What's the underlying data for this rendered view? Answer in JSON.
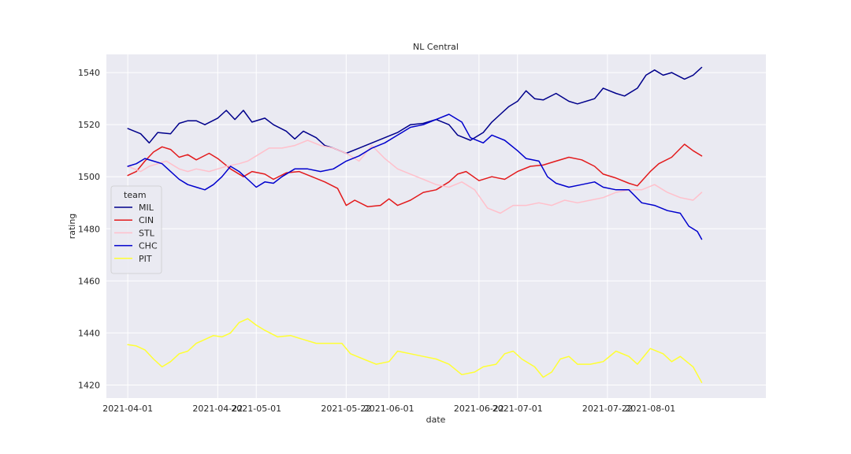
{
  "chart_data": {
    "type": "line",
    "title": "NL Central",
    "xlabel": "date",
    "ylabel": "rating",
    "xlim": [
      "2021-03-27",
      "2021-08-28"
    ],
    "ylim": [
      1415,
      1547
    ],
    "x_ticks": [
      "2021-04-01",
      "2021-04-22",
      "2021-05-01",
      "2021-05-22",
      "2021-06-01",
      "2021-06-22",
      "2021-07-01",
      "2021-07-22",
      "2021-08-01"
    ],
    "y_ticks": [
      1420,
      1440,
      1460,
      1480,
      1500,
      1520,
      1540
    ],
    "grid": true,
    "legend_title": "team",
    "legend_placement": "center-left",
    "series": [
      {
        "name": "MIL",
        "color": "#00008b",
        "points": [
          [
            "2021-04-01",
            1518.5
          ],
          [
            "2021-04-04",
            1516.5
          ],
          [
            "2021-04-06",
            1513
          ],
          [
            "2021-04-08",
            1517
          ],
          [
            "2021-04-11",
            1516.5
          ],
          [
            "2021-04-13",
            1520.5
          ],
          [
            "2021-04-15",
            1521.5
          ],
          [
            "2021-04-17",
            1521.5
          ],
          [
            "2021-04-19",
            1520
          ],
          [
            "2021-04-22",
            1522.5
          ],
          [
            "2021-04-24",
            1525.5
          ],
          [
            "2021-04-26",
            1522
          ],
          [
            "2021-04-28",
            1525.5
          ],
          [
            "2021-04-30",
            1521
          ],
          [
            "2021-05-03",
            1522.5
          ],
          [
            "2021-05-05",
            1520
          ],
          [
            "2021-05-08",
            1517.5
          ],
          [
            "2021-05-10",
            1514.5
          ],
          [
            "2021-05-12",
            1517.5
          ],
          [
            "2021-05-15",
            1515
          ],
          [
            "2021-05-17",
            1512
          ],
          [
            "2021-05-19",
            1511
          ],
          [
            "2021-05-22",
            1509
          ],
          [
            "2021-05-25",
            1511
          ],
          [
            "2021-05-28",
            1513
          ],
          [
            "2021-05-31",
            1515
          ],
          [
            "2021-06-03",
            1517
          ],
          [
            "2021-06-06",
            1520
          ],
          [
            "2021-06-09",
            1520.5
          ],
          [
            "2021-06-12",
            1522
          ],
          [
            "2021-06-15",
            1520
          ],
          [
            "2021-06-17",
            1516
          ],
          [
            "2021-06-20",
            1514
          ],
          [
            "2021-06-23",
            1517
          ],
          [
            "2021-06-25",
            1521
          ],
          [
            "2021-06-27",
            1524
          ],
          [
            "2021-06-29",
            1527
          ],
          [
            "2021-07-01",
            1529
          ],
          [
            "2021-07-03",
            1533
          ],
          [
            "2021-07-05",
            1530
          ],
          [
            "2021-07-07",
            1529.5
          ],
          [
            "2021-07-10",
            1532
          ],
          [
            "2021-07-13",
            1529
          ],
          [
            "2021-07-15",
            1528
          ],
          [
            "2021-07-19",
            1530
          ],
          [
            "2021-07-21",
            1534
          ],
          [
            "2021-07-24",
            1532
          ],
          [
            "2021-07-26",
            1531
          ],
          [
            "2021-07-29",
            1534
          ],
          [
            "2021-07-31",
            1539
          ],
          [
            "2021-08-02",
            1541
          ],
          [
            "2021-08-04",
            1539
          ],
          [
            "2021-08-06",
            1540
          ],
          [
            "2021-08-09",
            1537.5
          ],
          [
            "2021-08-11",
            1539
          ],
          [
            "2021-08-13",
            1542
          ]
        ]
      },
      {
        "name": "CIN",
        "color": "#e31a1c",
        "points": [
          [
            "2021-04-01",
            1500.5
          ],
          [
            "2021-04-03",
            1502
          ],
          [
            "2021-04-05",
            1506
          ],
          [
            "2021-04-07",
            1509.5
          ],
          [
            "2021-04-09",
            1511.5
          ],
          [
            "2021-04-11",
            1510.5
          ],
          [
            "2021-04-13",
            1507.5
          ],
          [
            "2021-04-15",
            1508.5
          ],
          [
            "2021-04-17",
            1506.5
          ],
          [
            "2021-04-20",
            1509
          ],
          [
            "2021-04-22",
            1507
          ],
          [
            "2021-04-25",
            1503
          ],
          [
            "2021-04-28",
            1500
          ],
          [
            "2021-04-30",
            1502
          ],
          [
            "2021-05-03",
            1501
          ],
          [
            "2021-05-05",
            1499
          ],
          [
            "2021-05-08",
            1501.5
          ],
          [
            "2021-05-11",
            1502
          ],
          [
            "2021-05-14",
            1500
          ],
          [
            "2021-05-17",
            1498
          ],
          [
            "2021-05-20",
            1495.5
          ],
          [
            "2021-05-22",
            1489
          ],
          [
            "2021-05-24",
            1491
          ],
          [
            "2021-05-27",
            1488.5
          ],
          [
            "2021-05-30",
            1489
          ],
          [
            "2021-06-01",
            1491.5
          ],
          [
            "2021-06-03",
            1489
          ],
          [
            "2021-06-06",
            1491
          ],
          [
            "2021-06-09",
            1494
          ],
          [
            "2021-06-12",
            1495
          ],
          [
            "2021-06-15",
            1498
          ],
          [
            "2021-06-17",
            1501
          ],
          [
            "2021-06-19",
            1502
          ],
          [
            "2021-06-22",
            1498.5
          ],
          [
            "2021-06-25",
            1500
          ],
          [
            "2021-06-28",
            1499
          ],
          [
            "2021-07-01",
            1502
          ],
          [
            "2021-07-04",
            1504
          ],
          [
            "2021-07-07",
            1504.5
          ],
          [
            "2021-07-10",
            1506
          ],
          [
            "2021-07-13",
            1507.5
          ],
          [
            "2021-07-16",
            1506.5
          ],
          [
            "2021-07-19",
            1504
          ],
          [
            "2021-07-21",
            1501
          ],
          [
            "2021-07-24",
            1499.5
          ],
          [
            "2021-07-27",
            1497.5
          ],
          [
            "2021-07-29",
            1496.5
          ],
          [
            "2021-08-01",
            1502
          ],
          [
            "2021-08-03",
            1505
          ],
          [
            "2021-08-06",
            1507.5
          ],
          [
            "2021-08-09",
            1512.5
          ],
          [
            "2021-08-11",
            1510
          ],
          [
            "2021-08-13",
            1508
          ]
        ]
      },
      {
        "name": "STL",
        "color": "#ffc0cb",
        "points": [
          [
            "2021-04-01",
            1504
          ],
          [
            "2021-04-04",
            1502
          ],
          [
            "2021-04-06",
            1504
          ],
          [
            "2021-04-08",
            1505
          ],
          [
            "2021-04-10",
            1506
          ],
          [
            "2021-04-13",
            1503
          ],
          [
            "2021-04-15",
            1502
          ],
          [
            "2021-04-17",
            1503
          ],
          [
            "2021-04-20",
            1502
          ],
          [
            "2021-04-22",
            1503
          ],
          [
            "2021-04-24",
            1504
          ],
          [
            "2021-04-27",
            1505
          ],
          [
            "2021-04-29",
            1506
          ],
          [
            "2021-05-01",
            1508
          ],
          [
            "2021-05-04",
            1511
          ],
          [
            "2021-05-07",
            1511
          ],
          [
            "2021-05-10",
            1512
          ],
          [
            "2021-05-13",
            1514
          ],
          [
            "2021-05-16",
            1512
          ],
          [
            "2021-05-19",
            1511
          ],
          [
            "2021-05-22",
            1509
          ],
          [
            "2021-05-25",
            1506
          ],
          [
            "2021-05-28",
            1512
          ],
          [
            "2021-05-31",
            1507
          ],
          [
            "2021-06-03",
            1503
          ],
          [
            "2021-06-06",
            1501
          ],
          [
            "2021-06-09",
            1499
          ],
          [
            "2021-06-12",
            1497
          ],
          [
            "2021-06-15",
            1496
          ],
          [
            "2021-06-18",
            1498
          ],
          [
            "2021-06-21",
            1495
          ],
          [
            "2021-06-24",
            1488
          ],
          [
            "2021-06-27",
            1486
          ],
          [
            "2021-06-30",
            1489
          ],
          [
            "2021-07-03",
            1489
          ],
          [
            "2021-07-06",
            1490
          ],
          [
            "2021-07-09",
            1489
          ],
          [
            "2021-07-12",
            1491
          ],
          [
            "2021-07-15",
            1490
          ],
          [
            "2021-07-18",
            1491
          ],
          [
            "2021-07-21",
            1492
          ],
          [
            "2021-07-24",
            1494
          ],
          [
            "2021-07-27",
            1495
          ],
          [
            "2021-07-30",
            1495
          ],
          [
            "2021-08-02",
            1497
          ],
          [
            "2021-08-05",
            1494
          ],
          [
            "2021-08-08",
            1492
          ],
          [
            "2021-08-11",
            1491
          ],
          [
            "2021-08-13",
            1494
          ]
        ]
      },
      {
        "name": "CHC",
        "color": "#0000cd",
        "points": [
          [
            "2021-04-01",
            1504
          ],
          [
            "2021-04-03",
            1505
          ],
          [
            "2021-04-05",
            1507
          ],
          [
            "2021-04-07",
            1506
          ],
          [
            "2021-04-09",
            1505
          ],
          [
            "2021-04-11",
            1502
          ],
          [
            "2021-04-13",
            1499
          ],
          [
            "2021-04-15",
            1497
          ],
          [
            "2021-04-17",
            1496
          ],
          [
            "2021-04-19",
            1495
          ],
          [
            "2021-04-21",
            1497
          ],
          [
            "2021-04-23",
            1500
          ],
          [
            "2021-04-25",
            1504
          ],
          [
            "2021-04-27",
            1502
          ],
          [
            "2021-04-29",
            1499
          ],
          [
            "2021-05-01",
            1496
          ],
          [
            "2021-05-03",
            1498
          ],
          [
            "2021-05-05",
            1497.5
          ],
          [
            "2021-05-07",
            1500
          ],
          [
            "2021-05-10",
            1503
          ],
          [
            "2021-05-13",
            1503
          ],
          [
            "2021-05-16",
            1502
          ],
          [
            "2021-05-19",
            1503
          ],
          [
            "2021-05-22",
            1506
          ],
          [
            "2021-05-25",
            1508
          ],
          [
            "2021-05-28",
            1511
          ],
          [
            "2021-05-31",
            1513
          ],
          [
            "2021-06-03",
            1516
          ],
          [
            "2021-06-06",
            1519
          ],
          [
            "2021-06-09",
            1520
          ],
          [
            "2021-06-12",
            1522
          ],
          [
            "2021-06-15",
            1524
          ],
          [
            "2021-06-18",
            1521
          ],
          [
            "2021-06-20",
            1515
          ],
          [
            "2021-06-23",
            1513
          ],
          [
            "2021-06-25",
            1516
          ],
          [
            "2021-06-28",
            1514
          ],
          [
            "2021-07-01",
            1510
          ],
          [
            "2021-07-03",
            1507
          ],
          [
            "2021-07-06",
            1506
          ],
          [
            "2021-07-08",
            1500
          ],
          [
            "2021-07-10",
            1497.5
          ],
          [
            "2021-07-13",
            1496
          ],
          [
            "2021-07-16",
            1497
          ],
          [
            "2021-07-19",
            1498
          ],
          [
            "2021-07-21",
            1496
          ],
          [
            "2021-07-24",
            1495
          ],
          [
            "2021-07-27",
            1495
          ],
          [
            "2021-07-30",
            1490
          ],
          [
            "2021-08-02",
            1489
          ],
          [
            "2021-08-05",
            1487
          ],
          [
            "2021-08-08",
            1486
          ],
          [
            "2021-08-10",
            1481
          ],
          [
            "2021-08-12",
            1479
          ],
          [
            "2021-08-13",
            1476
          ]
        ]
      },
      {
        "name": "PIT",
        "color": "#ffff33",
        "points": [
          [
            "2021-04-01",
            1435.5
          ],
          [
            "2021-04-03",
            1435
          ],
          [
            "2021-04-05",
            1433.5
          ],
          [
            "2021-04-07",
            1430
          ],
          [
            "2021-04-09",
            1427
          ],
          [
            "2021-04-11",
            1429
          ],
          [
            "2021-04-13",
            1432
          ],
          [
            "2021-04-15",
            1433
          ],
          [
            "2021-04-17",
            1436
          ],
          [
            "2021-04-19",
            1437.5
          ],
          [
            "2021-04-21",
            1439
          ],
          [
            "2021-04-23",
            1438.5
          ],
          [
            "2021-04-25",
            1440
          ],
          [
            "2021-04-27",
            1444
          ],
          [
            "2021-04-29",
            1445.5
          ],
          [
            "2021-05-01",
            1443
          ],
          [
            "2021-05-03",
            1441
          ],
          [
            "2021-05-06",
            1438.5
          ],
          [
            "2021-05-09",
            1439
          ],
          [
            "2021-05-12",
            1437.5
          ],
          [
            "2021-05-15",
            1436
          ],
          [
            "2021-05-18",
            1436
          ],
          [
            "2021-05-21",
            1436
          ],
          [
            "2021-05-23",
            1432
          ],
          [
            "2021-05-26",
            1430
          ],
          [
            "2021-05-29",
            1428
          ],
          [
            "2021-06-01",
            1429
          ],
          [
            "2021-06-03",
            1433
          ],
          [
            "2021-06-06",
            1432
          ],
          [
            "2021-06-09",
            1431
          ],
          [
            "2021-06-12",
            1430
          ],
          [
            "2021-06-15",
            1428
          ],
          [
            "2021-06-18",
            1424
          ],
          [
            "2021-06-21",
            1425
          ],
          [
            "2021-06-23",
            1427
          ],
          [
            "2021-06-26",
            1428
          ],
          [
            "2021-06-28",
            1432
          ],
          [
            "2021-06-30",
            1433
          ],
          [
            "2021-07-02",
            1430
          ],
          [
            "2021-07-05",
            1427
          ],
          [
            "2021-07-07",
            1423
          ],
          [
            "2021-07-09",
            1425
          ],
          [
            "2021-07-11",
            1430
          ],
          [
            "2021-07-13",
            1431
          ],
          [
            "2021-07-15",
            1428
          ],
          [
            "2021-07-18",
            1428
          ],
          [
            "2021-07-21",
            1429
          ],
          [
            "2021-07-24",
            1433
          ],
          [
            "2021-07-27",
            1431
          ],
          [
            "2021-07-29",
            1428
          ],
          [
            "2021-08-01",
            1434
          ],
          [
            "2021-08-04",
            1432
          ],
          [
            "2021-08-06",
            1429
          ],
          [
            "2021-08-08",
            1431
          ],
          [
            "2021-08-11",
            1427
          ],
          [
            "2021-08-13",
            1421
          ]
        ]
      }
    ]
  }
}
